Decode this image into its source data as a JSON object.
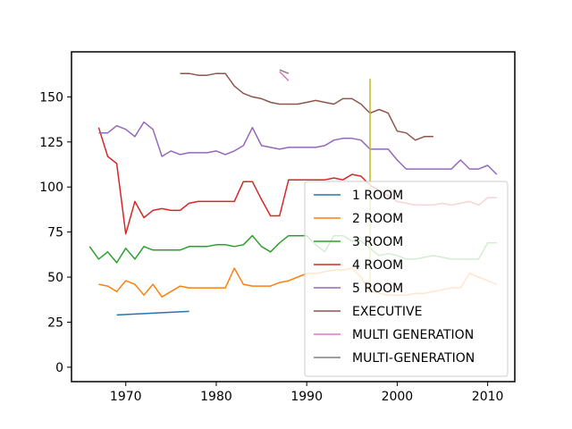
{
  "chart_data": {
    "type": "line",
    "title": "",
    "xlabel": "",
    "ylabel": "",
    "xlim": [
      1964,
      2013
    ],
    "ylim": [
      -8,
      175
    ],
    "xticks": [
      1970,
      1980,
      1990,
      2000,
      2010
    ],
    "yticks": [
      0,
      25,
      50,
      75,
      100,
      125,
      150
    ],
    "grid": false,
    "legend_position": "lower-right",
    "series": [
      {
        "name": "1 ROOM",
        "color": "#1f77b4",
        "points": [
          [
            1969,
            29
          ],
          [
            1977,
            31
          ]
        ]
      },
      {
        "name": "2 ROOM",
        "color": "#ff7f0e",
        "points": [
          [
            1967,
            46
          ],
          [
            1968,
            45
          ],
          [
            1969,
            42
          ],
          [
            1970,
            48
          ],
          [
            1971,
            46
          ],
          [
            1972,
            40
          ],
          [
            1973,
            46
          ],
          [
            1974,
            39
          ],
          [
            1975,
            42
          ],
          [
            1976,
            45
          ],
          [
            1977,
            44
          ],
          [
            1978,
            44
          ],
          [
            1979,
            44
          ],
          [
            1980,
            44
          ],
          [
            1981,
            44
          ],
          [
            1982,
            55
          ],
          [
            1983,
            46
          ],
          [
            1984,
            45
          ],
          [
            1985,
            45
          ],
          [
            1986,
            45
          ],
          [
            1987,
            47
          ],
          [
            1988,
            48
          ],
          [
            1989,
            50
          ],
          [
            1990,
            52
          ],
          [
            1991,
            52
          ],
          [
            1992,
            53
          ],
          [
            1993,
            54
          ],
          [
            1994,
            54
          ],
          [
            1995,
            55
          ],
          [
            1996,
            50
          ],
          [
            1997,
            42
          ],
          [
            1998,
            41
          ],
          [
            1999,
            40
          ],
          [
            2000,
            40
          ],
          [
            2001,
            40
          ],
          [
            2002,
            41
          ],
          [
            2003,
            41
          ],
          [
            2004,
            42
          ],
          [
            2005,
            43
          ],
          [
            2006,
            44
          ],
          [
            2007,
            44
          ],
          [
            2008,
            52
          ],
          [
            2009,
            50
          ],
          [
            2010,
            48
          ],
          [
            2011,
            46
          ]
        ]
      },
      {
        "name": "3 ROOM",
        "color": "#2ca02c",
        "points": [
          [
            1966,
            67
          ],
          [
            1967,
            60
          ],
          [
            1968,
            64
          ],
          [
            1969,
            58
          ],
          [
            1970,
            66
          ],
          [
            1971,
            60
          ],
          [
            1972,
            67
          ],
          [
            1973,
            65
          ],
          [
            1974,
            65
          ],
          [
            1975,
            65
          ],
          [
            1976,
            65
          ],
          [
            1977,
            67
          ],
          [
            1978,
            67
          ],
          [
            1979,
            67
          ],
          [
            1980,
            68
          ],
          [
            1981,
            68
          ],
          [
            1982,
            67
          ],
          [
            1983,
            68
          ],
          [
            1984,
            73
          ],
          [
            1985,
            67
          ],
          [
            1986,
            64
          ],
          [
            1987,
            69
          ],
          [
            1988,
            73
          ],
          [
            1989,
            73
          ],
          [
            1990,
            73
          ],
          [
            1991,
            68
          ],
          [
            1992,
            64
          ],
          [
            1993,
            73
          ],
          [
            1994,
            73
          ],
          [
            1995,
            70
          ],
          [
            1996,
            70
          ],
          [
            1997,
            66
          ],
          [
            1998,
            62
          ],
          [
            1999,
            63
          ],
          [
            2000,
            62
          ],
          [
            2001,
            60
          ],
          [
            2002,
            60
          ],
          [
            2003,
            61
          ],
          [
            2004,
            62
          ],
          [
            2005,
            61
          ],
          [
            2006,
            60
          ],
          [
            2007,
            60
          ],
          [
            2008,
            60
          ],
          [
            2009,
            60
          ],
          [
            2010,
            69
          ],
          [
            2011,
            69
          ]
        ]
      },
      {
        "name": "4 ROOM",
        "color": "#d62728",
        "points": [
          [
            1967,
            133
          ],
          [
            1968,
            117
          ],
          [
            1969,
            113
          ],
          [
            1970,
            74
          ],
          [
            1971,
            92
          ],
          [
            1972,
            83
          ],
          [
            1973,
            87
          ],
          [
            1974,
            88
          ],
          [
            1975,
            87
          ],
          [
            1976,
            87
          ],
          [
            1977,
            91
          ],
          [
            1978,
            92
          ],
          [
            1979,
            92
          ],
          [
            1980,
            92
          ],
          [
            1981,
            92
          ],
          [
            1982,
            92
          ],
          [
            1983,
            103
          ],
          [
            1984,
            103
          ],
          [
            1985,
            93
          ],
          [
            1986,
            84
          ],
          [
            1987,
            84
          ],
          [
            1988,
            104
          ],
          [
            1989,
            104
          ],
          [
            1990,
            104
          ],
          [
            1991,
            104
          ],
          [
            1992,
            104
          ],
          [
            1993,
            105
          ],
          [
            1994,
            104
          ],
          [
            1995,
            107
          ],
          [
            1996,
            106
          ],
          [
            1997,
            101
          ],
          [
            1998,
            98
          ],
          [
            1999,
            95
          ],
          [
            2000,
            92
          ],
          [
            2001,
            91
          ],
          [
            2002,
            90
          ],
          [
            2003,
            90
          ],
          [
            2004,
            90
          ],
          [
            2005,
            91
          ],
          [
            2006,
            90
          ],
          [
            2007,
            91
          ],
          [
            2008,
            92
          ],
          [
            2009,
            90
          ],
          [
            2010,
            94
          ],
          [
            2011,
            94
          ]
        ]
      },
      {
        "name": "5 ROOM",
        "color": "#9467bd",
        "points": [
          [
            1967,
            130
          ],
          [
            1968,
            130
          ],
          [
            1969,
            134
          ],
          [
            1970,
            132
          ],
          [
            1971,
            128
          ],
          [
            1972,
            136
          ],
          [
            1973,
            132
          ],
          [
            1974,
            117
          ],
          [
            1975,
            120
          ],
          [
            1976,
            118
          ],
          [
            1977,
            119
          ],
          [
            1978,
            119
          ],
          [
            1979,
            119
          ],
          [
            1980,
            120
          ],
          [
            1981,
            118
          ],
          [
            1982,
            120
          ],
          [
            1983,
            123
          ],
          [
            1984,
            133
          ],
          [
            1985,
            123
          ],
          [
            1986,
            122
          ],
          [
            1987,
            121
          ],
          [
            1988,
            122
          ],
          [
            1989,
            122
          ],
          [
            1990,
            122
          ],
          [
            1991,
            122
          ],
          [
            1992,
            123
          ],
          [
            1993,
            126
          ],
          [
            1994,
            127
          ],
          [
            1995,
            127
          ],
          [
            1996,
            126
          ],
          [
            1997,
            121
          ],
          [
            1998,
            121
          ],
          [
            1999,
            121
          ],
          [
            2000,
            115
          ],
          [
            2001,
            110
          ],
          [
            2002,
            110
          ],
          [
            2003,
            110
          ],
          [
            2004,
            110
          ],
          [
            2005,
            110
          ],
          [
            2006,
            110
          ],
          [
            2007,
            115
          ],
          [
            2008,
            110
          ],
          [
            2009,
            110
          ],
          [
            2010,
            112
          ],
          [
            2011,
            107
          ]
        ]
      },
      {
        "name": "EXECUTIVE",
        "color": "#8c564b",
        "points": [
          [
            1976,
            163
          ],
          [
            1977,
            163
          ],
          [
            1978,
            162
          ],
          [
            1979,
            162
          ],
          [
            1980,
            163
          ],
          [
            1981,
            163
          ],
          [
            1982,
            156
          ],
          [
            1983,
            152
          ],
          [
            1984,
            150
          ],
          [
            1985,
            149
          ],
          [
            1986,
            147
          ],
          [
            1987,
            146
          ],
          [
            1988,
            146
          ],
          [
            1989,
            146
          ],
          [
            1990,
            147
          ],
          [
            1991,
            148
          ],
          [
            1992,
            147
          ],
          [
            1993,
            146
          ],
          [
            1994,
            149
          ],
          [
            1995,
            149
          ],
          [
            1996,
            146
          ],
          [
            1997,
            141
          ],
          [
            1998,
            143
          ],
          [
            1999,
            141
          ],
          [
            2000,
            131
          ],
          [
            2001,
            130
          ],
          [
            2002,
            126
          ],
          [
            2003,
            128
          ],
          [
            2004,
            128
          ]
        ]
      },
      {
        "name": "MULTI GENERATION",
        "color": "#e377c2",
        "points": [
          [
            1987,
            164
          ],
          [
            1988,
            159
          ]
        ]
      },
      {
        "name": "MULTI-GENERATION",
        "color": "#7f7f7f",
        "points": [
          [
            1987,
            165
          ],
          [
            1988,
            163
          ]
        ]
      }
    ],
    "annotations": [
      {
        "kind": "vertical-line",
        "color": "#bcbd22",
        "x": 1997,
        "y_from": 42,
        "y_to": 160
      }
    ]
  }
}
